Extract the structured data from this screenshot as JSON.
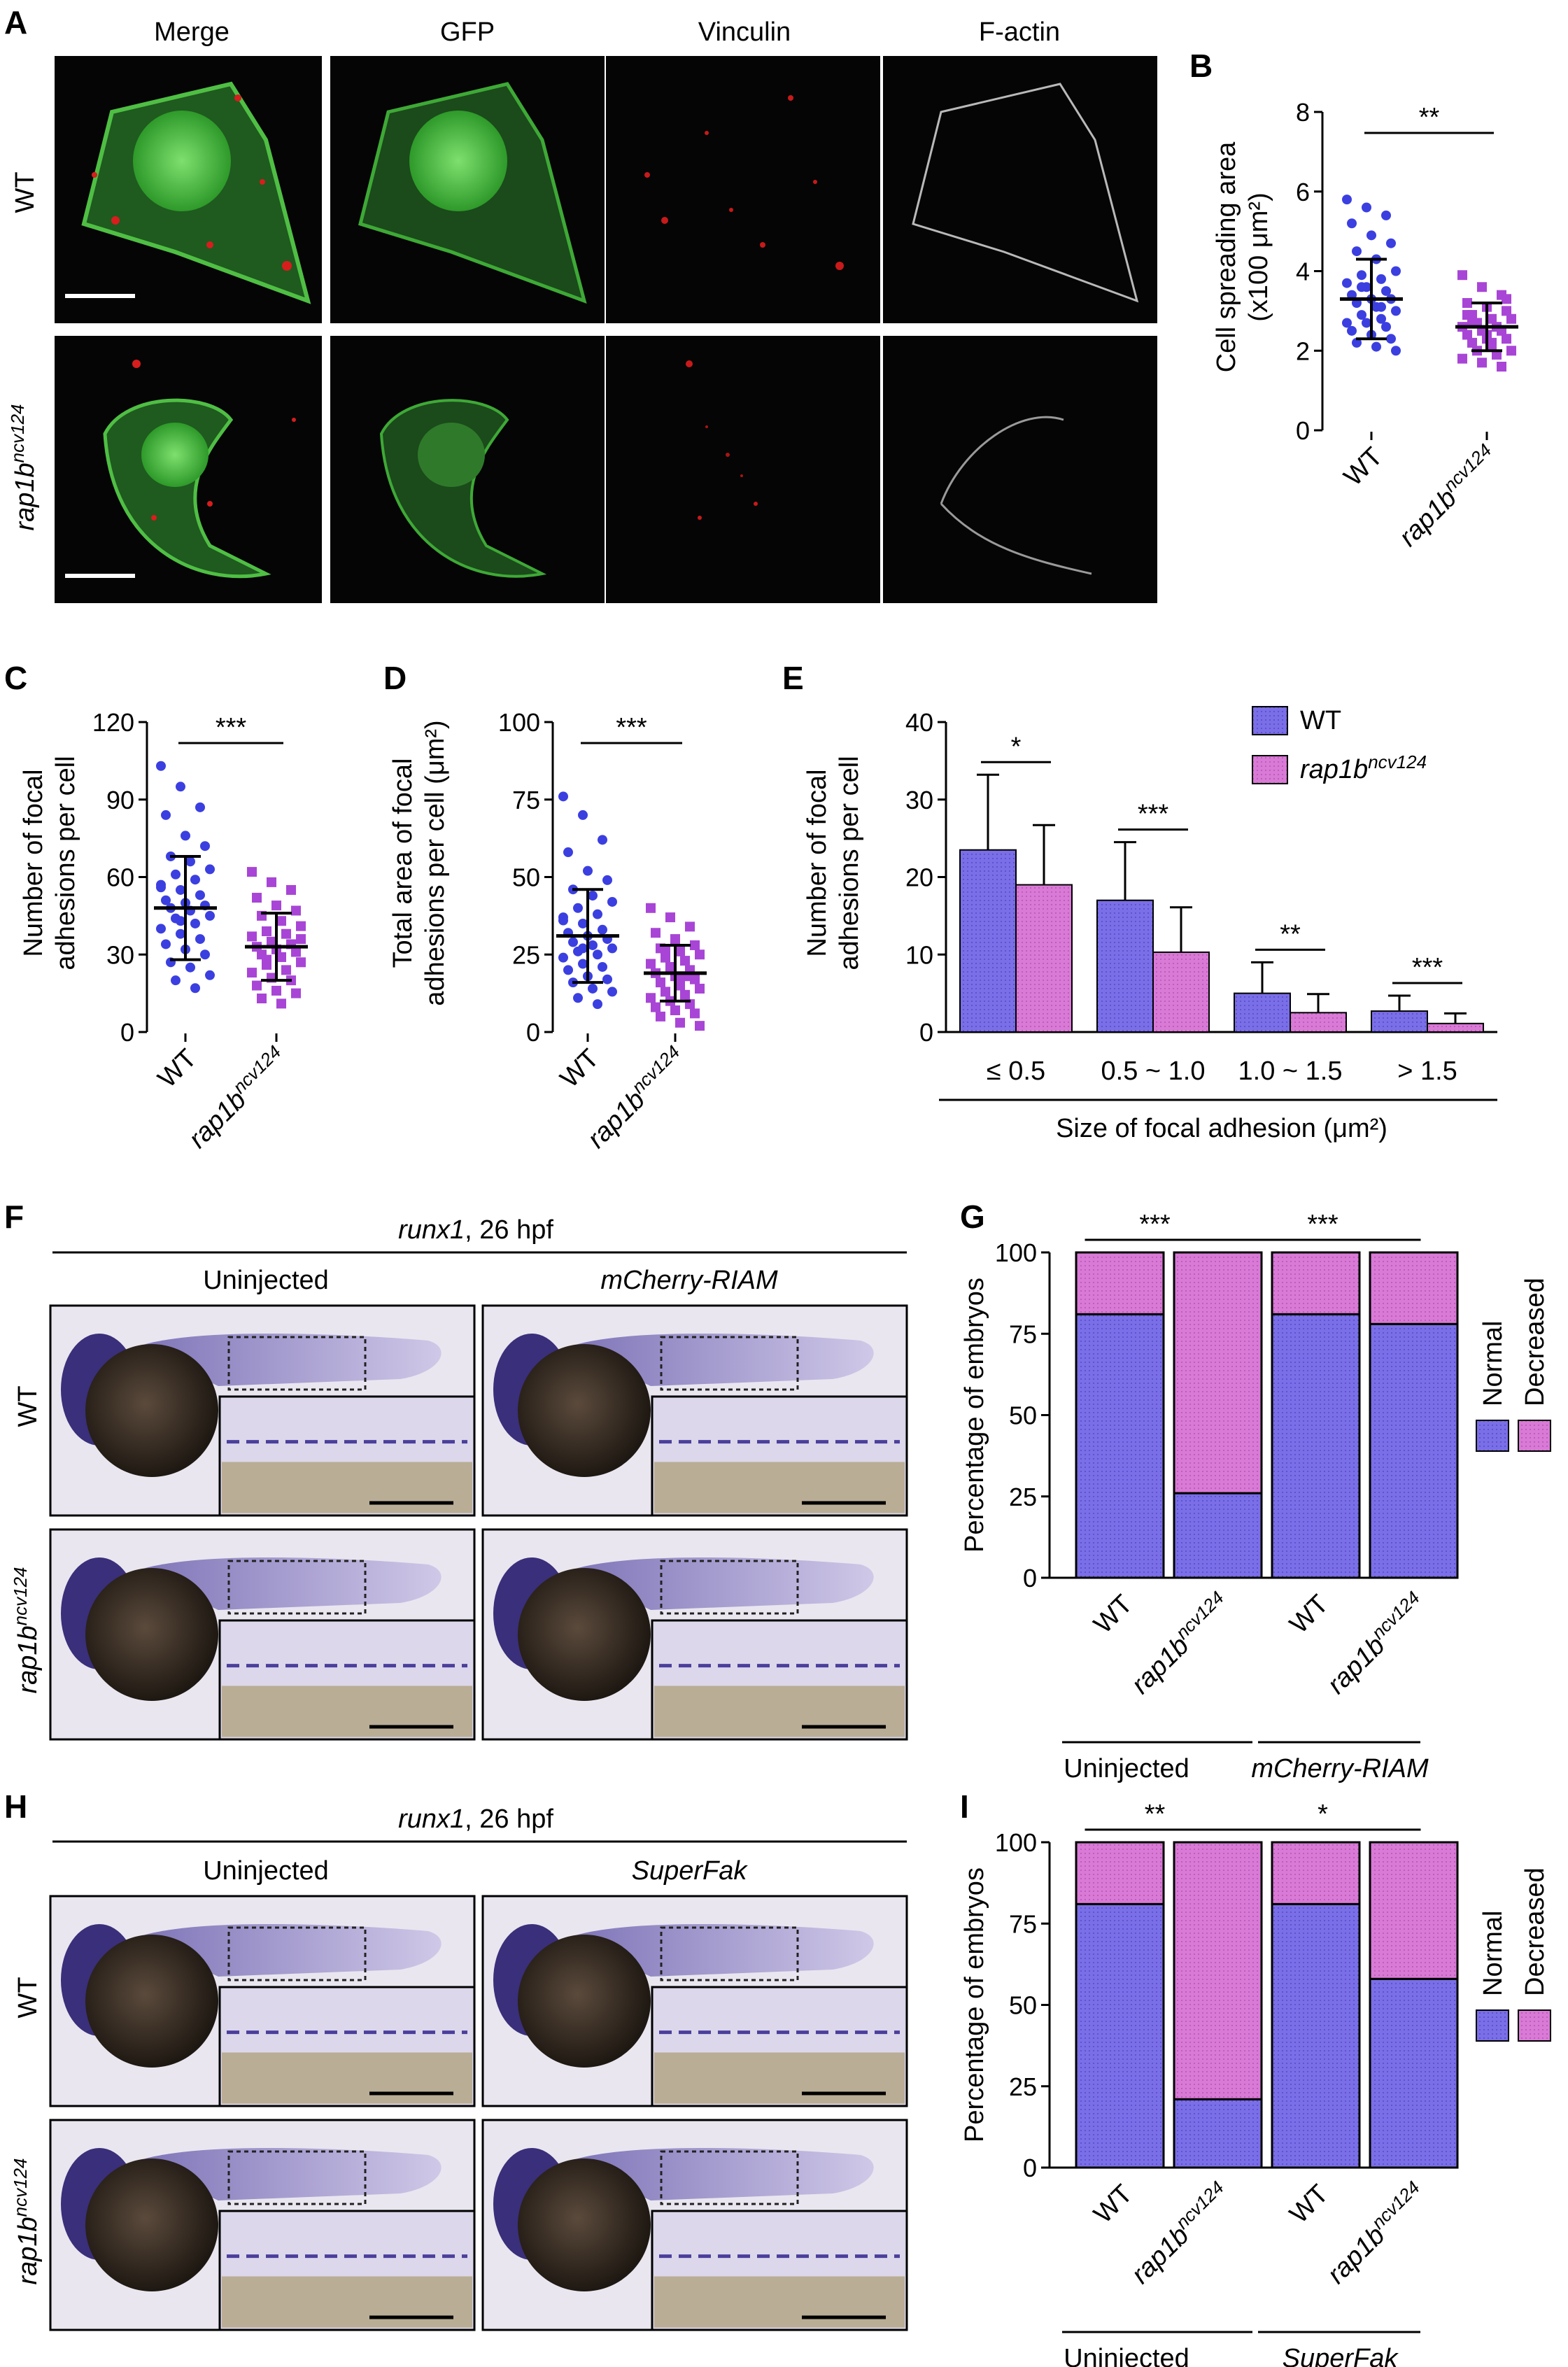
{
  "panels": {
    "A": {
      "letter": "A",
      "columns": [
        "Merge",
        "GFP",
        "Vinculin",
        "F-actin"
      ],
      "rows": [
        "WT",
        "rap1b",
        "ncv124"
      ]
    },
    "B": {
      "letter": "B"
    },
    "C": {
      "letter": "C"
    },
    "D": {
      "letter": "D"
    },
    "E": {
      "letter": "E"
    },
    "F": {
      "letter": "F",
      "gene": "runx1",
      "stage": ", 26 hpf",
      "col1": "Uninjected",
      "col2": "mCherry-RIAM",
      "row1": "WT",
      "row2": "rap1b",
      "row2_sup": "ncv124"
    },
    "G": {
      "letter": "G"
    },
    "H": {
      "letter": "H",
      "gene": "runx1",
      "stage": ", 26 hpf",
      "col1": "Uninjected",
      "col2": "SuperFak",
      "row1": "WT",
      "row2": "rap1b",
      "row2_sup": "ncv124"
    },
    "I": {
      "letter": "I"
    }
  },
  "colors": {
    "wt": "#7a6fe6",
    "mutant": "#d97ad6",
    "wt_dot": "#3b3fe0",
    "mutant_dot": "#a845d6",
    "green": "#55c04a",
    "red": "#d81d1d",
    "embryo_bg": "#e9e6ef"
  },
  "chart_data": [
    {
      "id": "B",
      "type": "scatter",
      "ylabel": "Cell spreading area",
      "ylabel2": "(x100 μm²)",
      "categories": [
        "WT",
        "rap1b"
      ],
      "category_sup": [
        "",
        "ncv124"
      ],
      "ylim": [
        0,
        8
      ],
      "yticks": [
        0,
        2,
        4,
        6,
        8
      ],
      "mean": [
        3.3,
        2.6
      ],
      "sd": [
        1.0,
        0.6
      ],
      "significance": "**",
      "series": [
        {
          "values": [
            5.8,
            5.6,
            5.4,
            5.2,
            4.9,
            4.7,
            4.5,
            4.3,
            4.0,
            3.9,
            3.8,
            3.7,
            3.6,
            3.5,
            3.4,
            3.3,
            3.3,
            3.2,
            3.1,
            3.0,
            2.9,
            2.8,
            2.7,
            2.7,
            2.6,
            2.5,
            2.4,
            2.3,
            2.2,
            2.1,
            2.0,
            3.6,
            3.1
          ]
        },
        {
          "values": [
            3.9,
            3.6,
            3.4,
            3.2,
            3.1,
            3.0,
            2.9,
            2.8,
            2.8,
            2.7,
            2.6,
            2.6,
            2.5,
            2.5,
            2.4,
            2.3,
            2.3,
            2.2,
            2.1,
            2.0,
            2.0,
            1.9,
            1.8,
            1.7,
            1.6,
            2.9,
            2.4,
            3.3,
            2.7,
            2.2
          ]
        }
      ]
    },
    {
      "id": "C",
      "type": "scatter",
      "ylabel": "Number of focal",
      "ylabel2": "adhesions per cell",
      "categories": [
        "WT",
        "rap1b"
      ],
      "category_sup": [
        "",
        "ncv124"
      ],
      "ylim": [
        0,
        120
      ],
      "yticks": [
        0,
        30,
        60,
        90,
        120
      ],
      "mean": [
        48,
        33
      ],
      "sd": [
        20,
        13
      ],
      "significance": "***",
      "series": [
        {
          "values": [
            103,
            95,
            87,
            84,
            76,
            72,
            68,
            66,
            63,
            61,
            59,
            57,
            55,
            53,
            51,
            50,
            49,
            48,
            47,
            45,
            44,
            42,
            40,
            38,
            36,
            34,
            32,
            30,
            27,
            25,
            22,
            20,
            17,
            56,
            43
          ]
        },
        {
          "values": [
            62,
            58,
            55,
            52,
            49,
            47,
            45,
            43,
            41,
            39,
            38,
            37,
            35,
            34,
            33,
            32,
            31,
            30,
            29,
            27,
            26,
            24,
            23,
            21,
            20,
            18,
            16,
            15,
            13,
            11,
            36,
            28
          ]
        }
      ]
    },
    {
      "id": "D",
      "type": "scatter",
      "ylabel": "Total area of focal",
      "ylabel2": "adhesions per cell (μm²)",
      "categories": [
        "WT",
        "rap1b"
      ],
      "category_sup": [
        "",
        "ncv124"
      ],
      "ylim": [
        0,
        100
      ],
      "yticks": [
        0,
        25,
        50,
        75,
        100
      ],
      "mean": [
        31,
        19
      ],
      "sd": [
        15,
        9
      ],
      "significance": "***",
      "series": [
        {
          "values": [
            76,
            70,
            62,
            58,
            52,
            49,
            46,
            44,
            42,
            40,
            38,
            36,
            35,
            33,
            32,
            31,
            30,
            29,
            28,
            27,
            26,
            25,
            24,
            22,
            21,
            20,
            18,
            17,
            16,
            14,
            13,
            11,
            9,
            37,
            27
          ]
        },
        {
          "values": [
            40,
            37,
            34,
            32,
            30,
            28,
            27,
            26,
            25,
            24,
            23,
            22,
            21,
            20,
            19,
            18,
            17,
            16,
            15,
            14,
            13,
            12,
            11,
            10,
            9,
            8,
            7,
            6,
            5,
            3,
            2,
            26,
            18
          ]
        }
      ]
    },
    {
      "id": "E",
      "type": "bar",
      "ylabel": "Number of focal",
      "ylabel2": "adhesions per cell",
      "xlabel": "Size of focal adhesion (μm²)",
      "categories": [
        "≤ 0.5",
        "0.5 ~ 1.0",
        "1.0 ~ 1.5",
        "> 1.5"
      ],
      "ylim": [
        0,
        40
      ],
      "yticks": [
        0,
        10,
        20,
        30,
        40
      ],
      "significance": [
        "*",
        "***",
        "**",
        "***"
      ],
      "legend": [
        "WT",
        "rap1b"
      ],
      "legend_sup": [
        "",
        "ncv124"
      ],
      "legend_position": "top-right",
      "series": [
        {
          "name": "WT",
          "values": [
            23.5,
            17,
            5,
            2.7
          ],
          "err": [
            9.7,
            7.5,
            4,
            2
          ]
        },
        {
          "name": "rap1b ncv124",
          "values": [
            19,
            10.3,
            2.5,
            1.1
          ],
          "err": [
            7.7,
            5.8,
            2.4,
            1.3
          ]
        }
      ]
    },
    {
      "id": "G",
      "type": "bar",
      "stacked": true,
      "ylabel": "Percentage of embryos",
      "ylim": [
        0,
        100
      ],
      "yticks": [
        0,
        25,
        50,
        75,
        100
      ],
      "categories": [
        "WT",
        "rap1b",
        "WT",
        "rap1b"
      ],
      "category_sup": [
        "",
        "ncv124",
        "",
        "ncv124"
      ],
      "groups": [
        "Uninjected",
        "mCherry-RIAM"
      ],
      "significance": [
        "***",
        "***"
      ],
      "legend": [
        "Normal",
        "Decreased"
      ],
      "legend_position": "right",
      "series": [
        {
          "name": "Normal",
          "values": [
            81,
            26,
            81,
            78
          ]
        },
        {
          "name": "Decreased",
          "values": [
            19,
            74,
            19,
            22
          ]
        }
      ]
    },
    {
      "id": "I",
      "type": "bar",
      "stacked": true,
      "ylabel": "Percentage of embryos",
      "ylim": [
        0,
        100
      ],
      "yticks": [
        0,
        25,
        50,
        75,
        100
      ],
      "categories": [
        "WT",
        "rap1b",
        "WT",
        "rap1b"
      ],
      "category_sup": [
        "",
        "ncv124",
        "",
        "ncv124"
      ],
      "groups": [
        "Uninjected",
        "SuperFak"
      ],
      "significance": [
        "**",
        "*"
      ],
      "legend": [
        "Normal",
        "Decreased"
      ],
      "legend_position": "right",
      "series": [
        {
          "name": "Normal",
          "values": [
            81,
            21,
            81,
            58
          ]
        },
        {
          "name": "Decreased",
          "values": [
            19,
            79,
            19,
            42
          ]
        }
      ]
    }
  ]
}
